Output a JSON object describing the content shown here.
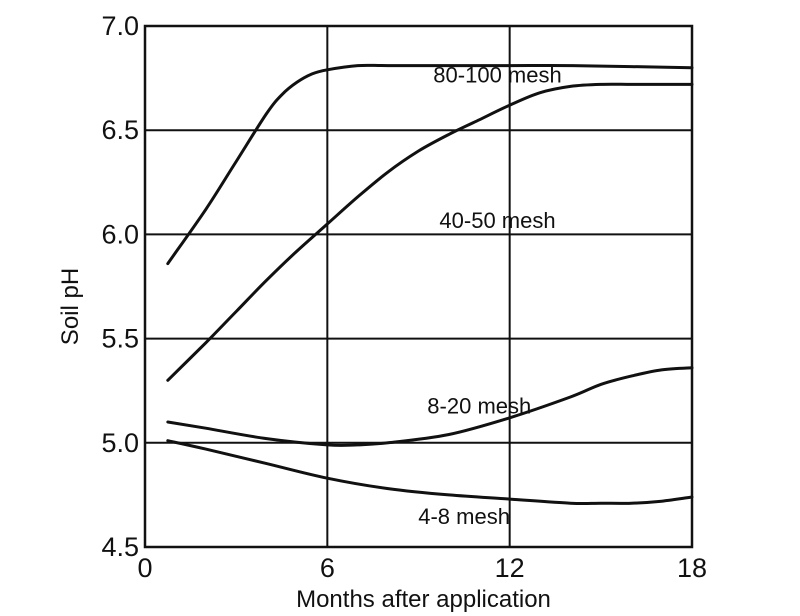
{
  "chart_data": {
    "type": "line",
    "title": "",
    "xlabel": "Months after application",
    "ylabel": "Soil pH",
    "xlim": [
      0,
      18
    ],
    "ylim": [
      4.5,
      7.0
    ],
    "x_ticks": [
      0,
      6,
      12,
      18
    ],
    "y_ticks": [
      4.5,
      5.0,
      5.5,
      6.0,
      6.5,
      7.0
    ],
    "y_tick_labels": [
      "4.5",
      "5.0",
      "5.5",
      "6.0",
      "6.5",
      "7.0"
    ],
    "x_tick_labels": [
      "0",
      "6",
      "12",
      "18"
    ],
    "grid": true,
    "series": [
      {
        "name": "80-100 mesh",
        "x": [
          0.75,
          2.0,
          3.0,
          4.0,
          4.5,
          5.0,
          5.5,
          6.0,
          7.0,
          8.0,
          10.0,
          12.0,
          14.0,
          16.0,
          18.0
        ],
        "y": [
          5.86,
          6.12,
          6.35,
          6.58,
          6.67,
          6.73,
          6.77,
          6.79,
          6.81,
          6.81,
          6.81,
          6.81,
          6.81,
          6.805,
          6.8
        ]
      },
      {
        "name": "40-50 mesh",
        "x": [
          0.75,
          2.0,
          3.0,
          4.0,
          5.0,
          6.0,
          7.0,
          8.0,
          9.0,
          10.0,
          11.0,
          12.0,
          13.0,
          14.0,
          15.0,
          16.0,
          17.0,
          18.0
        ],
        "y": [
          5.3,
          5.48,
          5.63,
          5.78,
          5.92,
          6.05,
          6.18,
          6.3,
          6.4,
          6.48,
          6.55,
          6.62,
          6.68,
          6.71,
          6.72,
          6.72,
          6.72,
          6.72
        ]
      },
      {
        "name": "8-20 mesh",
        "x": [
          0.75,
          2.0,
          4.0,
          6.0,
          7.0,
          8.0,
          10.0,
          12.0,
          14.0,
          15.0,
          16.0,
          17.0,
          18.0
        ],
        "y": [
          5.1,
          5.07,
          5.02,
          4.99,
          4.99,
          5.0,
          5.04,
          5.12,
          5.22,
          5.28,
          5.32,
          5.35,
          5.36
        ]
      },
      {
        "name": "4-8 mesh",
        "x": [
          0.75,
          2.0,
          4.0,
          6.0,
          8.0,
          10.0,
          12.0,
          14.0,
          15.0,
          16.0,
          17.0,
          18.0
        ],
        "y": [
          5.01,
          4.97,
          4.9,
          4.83,
          4.78,
          4.75,
          4.73,
          4.71,
          4.71,
          4.71,
          4.72,
          4.74
        ]
      }
    ],
    "labels": [
      {
        "text": "80-100 mesh",
        "x": 11.6,
        "y": 6.73
      },
      {
        "text": "40-50 mesh",
        "x": 11.6,
        "y": 6.03
      },
      {
        "text": "8-20 mesh",
        "x": 11.0,
        "y": 5.14
      },
      {
        "text": "4-8 mesh",
        "x": 10.5,
        "y": 4.61
      }
    ]
  }
}
